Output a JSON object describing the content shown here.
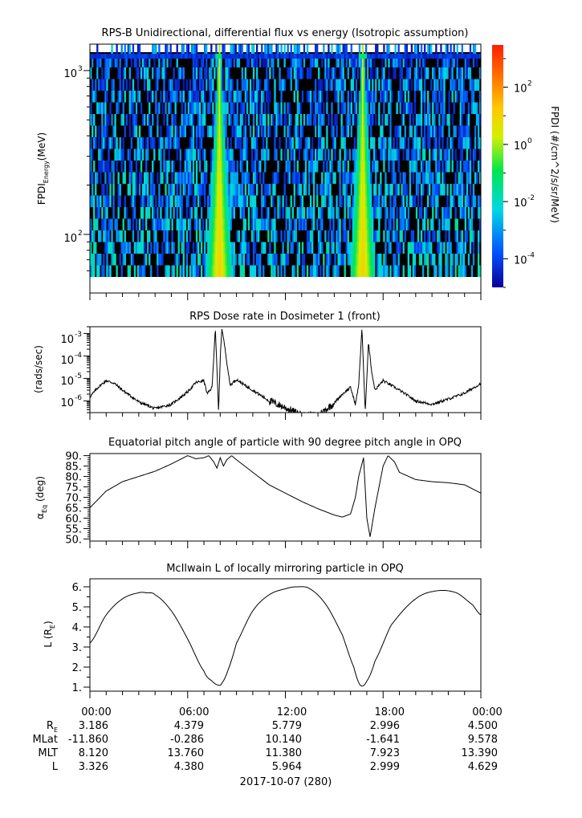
{
  "panels": [
    {
      "id": "spectrogram",
      "title": "RPS-B  Unidirectional, differential flux vs energy (Isotropic assumption)",
      "ylabel_main": "FPDI",
      "ylabel_sub": "Energy",
      "ylabel_units": "(MeV)",
      "ytick_base": "10",
      "ytick_exps": [
        "3",
        "2"
      ],
      "colorbar_label": "FPDI (#/cm^2/s/sr/MeV)",
      "colorbar_exps": [
        "2",
        "0",
        "-2",
        "-4"
      ],
      "colorbar_exp_values": [
        2,
        0,
        -2,
        -4
      ]
    },
    {
      "id": "dose",
      "title": "RPS  Dose rate in Dosimeter 1 (front)",
      "ylabel": "(rads/sec)",
      "ytick_base": "10",
      "ytick_exps": [
        "-3",
        "-4",
        "-5",
        "-6"
      ]
    },
    {
      "id": "pitch",
      "title": "Equatorial pitch angle of particle with 90 degree pitch angle in OPQ",
      "ylabel_main": "α",
      "ylabel_sub": "Eq",
      "ylabel_units": "(deg)",
      "ytick_labels": [
        "90.",
        "85.",
        "80.",
        "75.",
        "70.",
        "65.",
        "60.",
        "55.",
        "50."
      ]
    },
    {
      "id": "lshell",
      "title": "McIlwain L of locally mirroring particle in OPQ",
      "ylabel_main": "L (R",
      "ylabel_sub": "E",
      "ylabel_end": ")",
      "ytick_labels": [
        "6.",
        "5.",
        "4.",
        "3.",
        "2.",
        "1."
      ]
    }
  ],
  "chart_data": [
    {
      "type": "heatmap",
      "x_hours": [
        0,
        24
      ],
      "ylim_mev": [
        55,
        1450
      ],
      "y_scale": "log",
      "z_scale": "log",
      "z_range": [
        1e-05,
        3000
      ],
      "colormap": [
        "#0a0096",
        "#0050ff",
        "#00d7e6",
        "#00e650",
        "#d2f000",
        "#ffc800",
        "#ff7800",
        "#ff1e00"
      ],
      "bands": [
        {
          "center_hours": 7.95,
          "half_width_hours_bottom": 0.8,
          "half_width_hours_top": 0.08
        },
        {
          "center_hours": 16.75,
          "half_width_hours_bottom": 0.8,
          "half_width_hours_top": 0.08
        }
      ]
    },
    {
      "type": "line",
      "y_scale": "log",
      "ylim": [
        3e-07,
        0.002
      ],
      "x_hours": [
        0,
        0.5,
        1,
        1.5,
        2,
        3,
        4,
        5,
        6,
        6.5,
        7,
        7.2,
        7.5,
        7.7,
        7.9,
        8.0,
        8.1,
        8.3,
        8.6,
        9,
        9.5,
        10,
        11,
        12,
        13,
        14,
        15,
        15.5,
        16,
        16.3,
        16.5,
        16.7,
        16.9,
        17.1,
        17.3,
        17.5,
        18,
        19,
        20,
        21,
        22,
        23,
        24
      ],
      "y": [
        1.5e-06,
        4e-06,
        8e-06,
        6e-06,
        3e-06,
        9e-07,
        4.5e-07,
        7e-07,
        2.5e-06,
        6.5e-06,
        8e-06,
        2e-06,
        4e-06,
        0.0018,
        3e-07,
        8e-05,
        0.0018,
        0.0002,
        5e-06,
        9e-06,
        5e-06,
        3e-06,
        1e-06,
        5e-07,
        2.2e-07,
        2.2e-07,
        8e-07,
        2e-06,
        4e-06,
        7e-07,
        5e-06,
        0.0018,
        3e-07,
        0.0004,
        2e-05,
        3e-06,
        8e-06,
        3e-06,
        1e-06,
        7e-07,
        1.2e-06,
        2.2e-06,
        6e-06
      ]
    },
    {
      "type": "line",
      "ylim": [
        49,
        91
      ],
      "x_hours": [
        0,
        1,
        2,
        3,
        4,
        5,
        6,
        6.5,
        7,
        7.3,
        7.6,
        7.8,
        8.0,
        8.2,
        8.4,
        8.7,
        9,
        10,
        11,
        12,
        13,
        14,
        15,
        15.5,
        16,
        16.3,
        16.5,
        16.8,
        17.0,
        17.2,
        17.5,
        18,
        18.3,
        18.7,
        19,
        20,
        21,
        22,
        23,
        24
      ],
      "y": [
        65,
        73,
        77.5,
        80,
        82.5,
        86,
        90,
        88.5,
        89,
        90,
        87,
        84,
        89,
        85,
        88,
        90,
        88,
        82,
        76,
        72,
        68,
        64.5,
        61.5,
        60.5,
        62,
        70,
        80,
        89,
        60,
        51,
        65,
        85,
        90,
        87,
        82,
        78.5,
        77.5,
        77,
        76,
        72
      ]
    },
    {
      "type": "line",
      "ylim": [
        0.8,
        6.4
      ],
      "x_hours": [
        0,
        1,
        2,
        3,
        3.5,
        4,
        5,
        6,
        7,
        7.5,
        7.9,
        8.1,
        8.5,
        9,
        10,
        11,
        12,
        12.7,
        13.5,
        14.5,
        15.5,
        16.2,
        16.6,
        17.0,
        17.5,
        18.5,
        20,
        21.3,
        22.5,
        23.5,
        24
      ],
      "y": [
        3.2,
        4.6,
        5.4,
        5.7,
        5.7,
        5.6,
        4.8,
        3.4,
        1.8,
        1.3,
        1.1,
        1.2,
        1.9,
        3.2,
        4.8,
        5.6,
        5.9,
        6.0,
        5.9,
        5.1,
        3.6,
        2.0,
        1.1,
        1.3,
        2.3,
        4.1,
        5.4,
        5.8,
        5.7,
        5.1,
        4.6
      ]
    }
  ],
  "time_axis": {
    "ticks": [
      "00:00",
      "06:00",
      "12:00",
      "18:00",
      "00:00"
    ],
    "row_labels": [
      {
        "main": "R",
        "sub": "E"
      },
      {
        "main": "MLat",
        "sub": ""
      },
      {
        "main": "MLT",
        "sub": ""
      },
      {
        "main": "L",
        "sub": ""
      }
    ],
    "rows": [
      [
        "3.186",
        "4.379",
        "5.779",
        "2.996",
        "4.500"
      ],
      [
        "-11.860",
        "-0.286",
        "10.140",
        "-1.641",
        "9.578"
      ],
      [
        "8.120",
        "13.760",
        "11.380",
        "7.923",
        "13.390"
      ],
      [
        "3.326",
        "4.380",
        "5.964",
        "2.999",
        "4.629"
      ]
    ],
    "date": "2017-10-07 (280)"
  }
}
